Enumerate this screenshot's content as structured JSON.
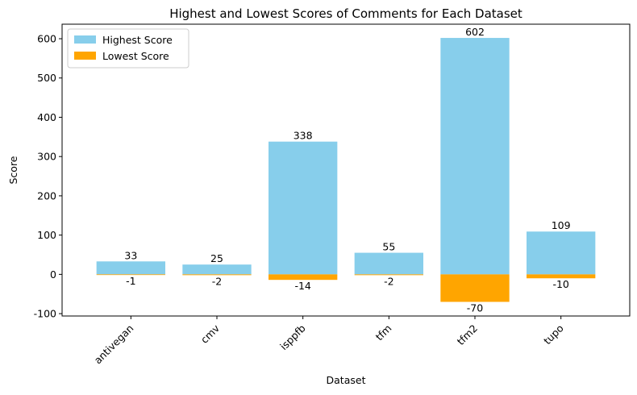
{
  "chart_data": {
    "type": "bar",
    "title": "Highest and Lowest Scores of Comments for Each Dataset",
    "xlabel": "Dataset",
    "ylabel": "Score",
    "categories": [
      "antivegan",
      "cmv",
      "isppfb",
      "tfm",
      "tfm2",
      "tupo"
    ],
    "series": [
      {
        "name": "Highest Score",
        "color": "#87CEEB",
        "values": [
          33,
          25,
          338,
          55,
          602,
          109
        ]
      },
      {
        "name": "Lowest Score",
        "color": "#FFA500",
        "values": [
          -1,
          -2,
          -14,
          -2,
          -70,
          -10
        ]
      }
    ],
    "ylim": [
      -106,
      637
    ],
    "yticks": [
      -100,
      0,
      100,
      200,
      300,
      400,
      500,
      600
    ],
    "legend": {
      "position": "top-left"
    },
    "grid": false
  }
}
